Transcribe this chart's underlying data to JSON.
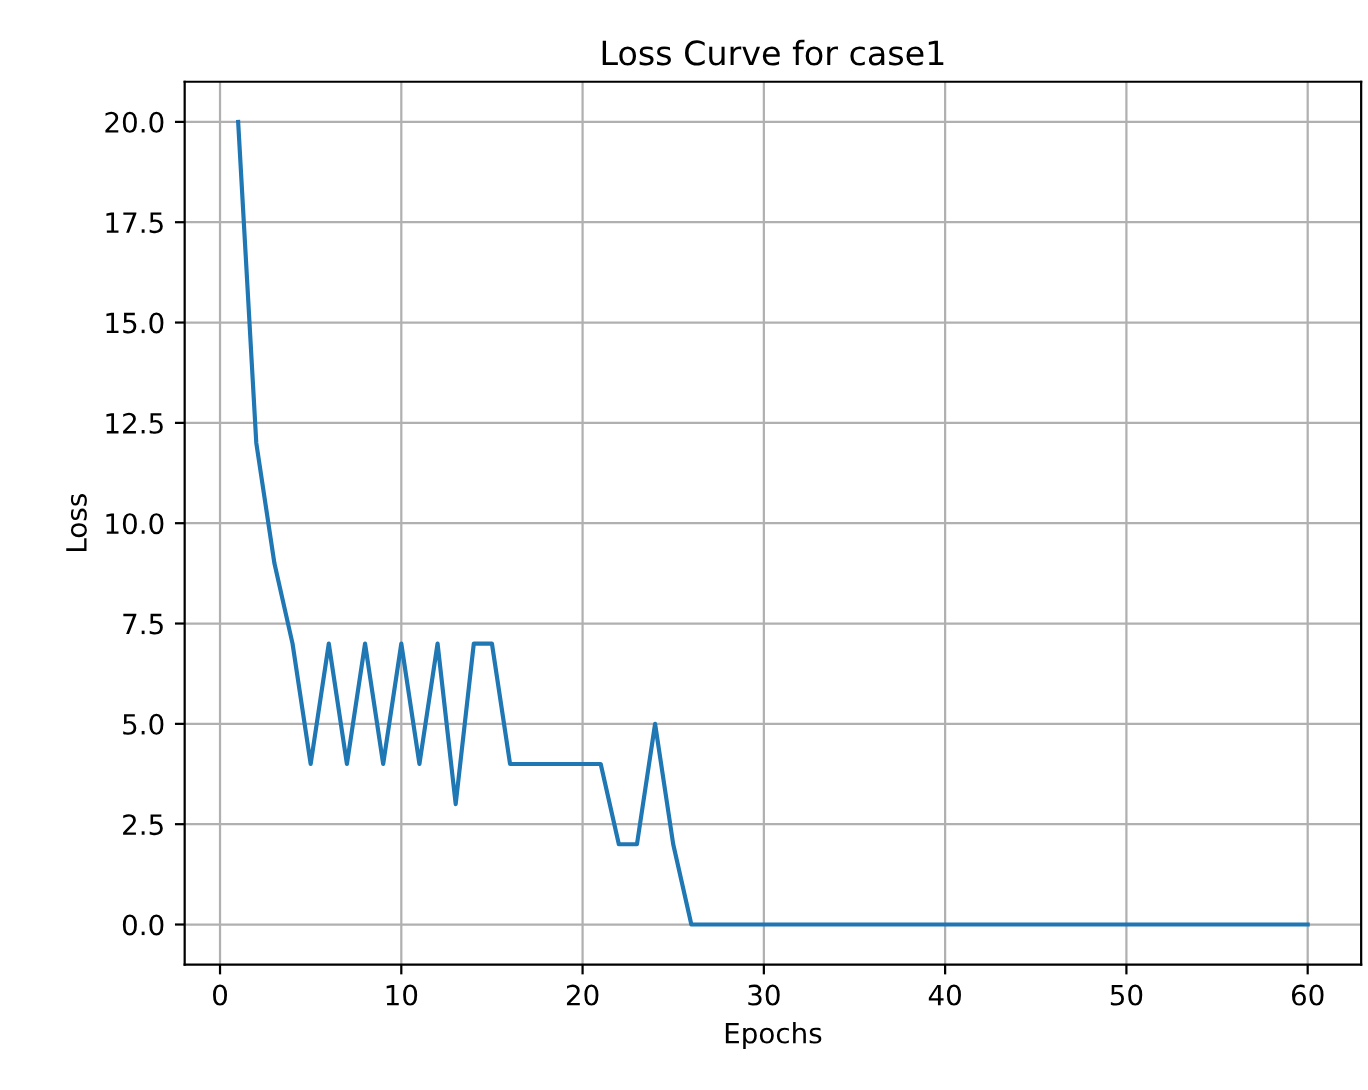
{
  "chart_data": {
    "type": "line",
    "title": "Loss Curve for case1",
    "xlabel": "Epochs",
    "ylabel": "Loss",
    "x": [
      1,
      2,
      3,
      4,
      5,
      6,
      7,
      8,
      9,
      10,
      11,
      12,
      13,
      14,
      15,
      16,
      17,
      18,
      19,
      20,
      21,
      22,
      23,
      24,
      25,
      26,
      27,
      28,
      29,
      30,
      31,
      32,
      33,
      34,
      35,
      36,
      37,
      38,
      39,
      40,
      41,
      42,
      43,
      44,
      45,
      46,
      47,
      48,
      49,
      50,
      51,
      52,
      53,
      54,
      55,
      56,
      57,
      58,
      59,
      60
    ],
    "series": [
      {
        "color": "#1f77b4",
        "values": [
          20,
          12,
          9,
          7,
          4,
          7,
          4,
          7,
          4,
          7,
          4,
          7,
          3,
          7,
          7,
          4,
          4,
          4,
          4,
          4,
          4,
          2,
          2,
          5,
          2,
          0,
          0,
          0,
          0,
          0,
          0,
          0,
          0,
          0,
          0,
          0,
          0,
          0,
          0,
          0,
          0,
          0,
          0,
          0,
          0,
          0,
          0,
          0,
          0,
          0,
          0,
          0,
          0,
          0,
          0,
          0,
          0,
          0,
          0,
          0
        ]
      }
    ],
    "xlim": [
      -1.95,
      62.95
    ],
    "ylim": [
      -1,
      21
    ],
    "xticks": [
      0,
      10,
      20,
      30,
      40,
      50,
      60
    ],
    "yticks": [
      {
        "value": 0,
        "label": "0.0"
      },
      {
        "value": 2.5,
        "label": "2.5"
      },
      {
        "value": 5,
        "label": "5.0"
      },
      {
        "value": 7.5,
        "label": "7.5"
      },
      {
        "value": 10,
        "label": "10.0"
      },
      {
        "value": 12.5,
        "label": "12.5"
      },
      {
        "value": 15,
        "label": "15.0"
      },
      {
        "value": 17.5,
        "label": "17.5"
      },
      {
        "value": 20,
        "label": "20.0"
      }
    ],
    "grid": true,
    "legend": false
  }
}
